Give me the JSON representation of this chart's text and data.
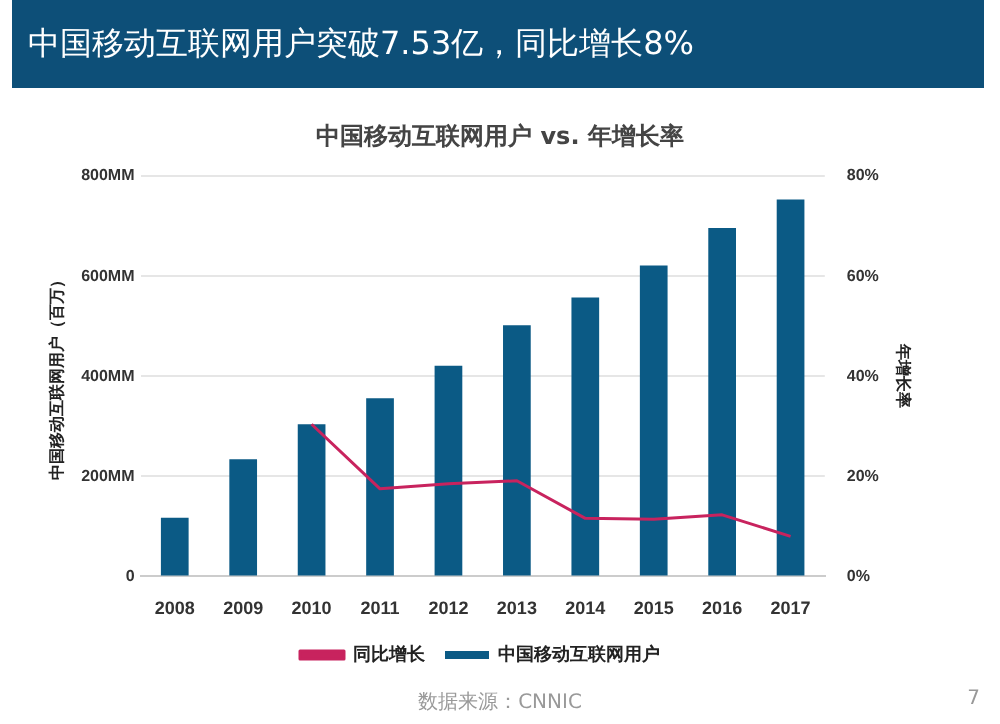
{
  "chart_data": {
    "type": "bar",
    "title": "中国移动互联网用户突破7.53亿，同比增长8%",
    "subtitle": "中国移动互联网用户 vs. 年增长率",
    "ylabel": "中国移动互联网用户（百万）",
    "y2label": "年增长率",
    "categories": [
      "2008",
      "2009",
      "2010",
      "2011",
      "2012",
      "2013",
      "2014",
      "2015",
      "2016",
      "2017"
    ],
    "series": [
      {
        "name": "中国移动互联网用户",
        "color": "#0b5a85",
        "values": [
          117,
          234,
          304,
          356,
          421,
          502,
          557,
          621,
          696,
          753
        ]
      },
      {
        "name": "同比增长",
        "type": "line",
        "axis": "y2",
        "color": "#c8235e",
        "values": [
          null,
          null,
          30.4,
          17.5,
          18.5,
          19.1,
          11.6,
          11.4,
          12.3,
          8
        ]
      }
    ],
    "ylim": [
      0,
      800
    ],
    "yticks": [
      0,
      {
        "value": 200,
        "label": "200MM"
      },
      {
        "value": 400,
        "label": "400MM"
      },
      {
        "value": 600,
        "label": "600MM"
      },
      {
        "value": 800,
        "label": "800MM"
      }
    ],
    "y2lim": [
      0,
      80
    ],
    "y2ticks": [
      {
        "value": 0,
        "label": "0%"
      },
      {
        "value": 20,
        "label": "20%"
      },
      {
        "value": 40,
        "label": "40%"
      },
      {
        "value": 60,
        "label": "60%"
      },
      {
        "value": 80,
        "label": "80%"
      }
    ],
    "grid": "y",
    "legend": "bottom",
    "marker": "none",
    "annotations": [
      "数据来源：CNNIC",
      "7"
    ]
  }
}
